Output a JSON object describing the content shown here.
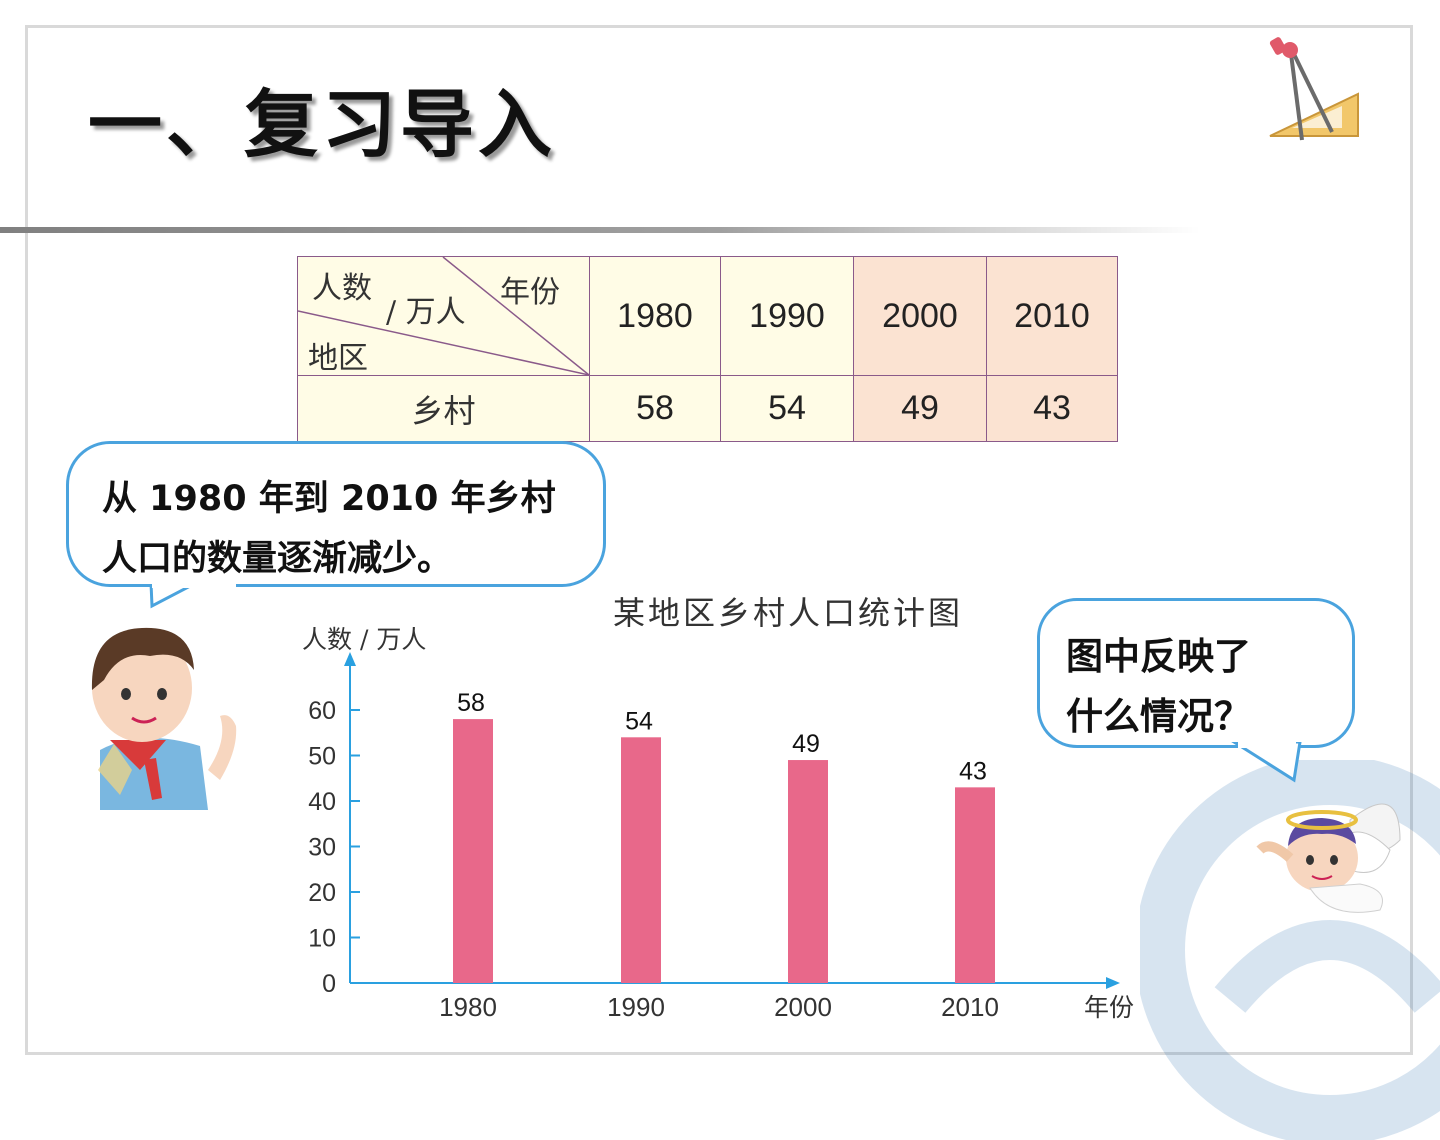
{
  "title": "一、复习导入",
  "table": {
    "corner_top_left": "人数",
    "corner_unit": "/ 万人",
    "corner_top_right": "年份",
    "corner_bottom": "地区",
    "years": [
      "1980",
      "1990",
      "2000",
      "2010"
    ],
    "row_label": "乡村",
    "row_values": [
      "58",
      "54",
      "49",
      "43"
    ]
  },
  "bubble_left": {
    "line1": "从 1980 年到 2010 年乡村",
    "line2": "人口的数量逐渐减少。"
  },
  "bubble_right": {
    "line1": "图中反映了",
    "line2": "什么情况？"
  },
  "chart_data": {
    "type": "bar",
    "title": "某地区乡村人口统计图",
    "ylabel": "人数 / 万人",
    "xlabel": "年份",
    "categories": [
      "1980",
      "1990",
      "2000",
      "2010"
    ],
    "values": [
      58,
      54,
      49,
      43
    ],
    "ylim": [
      0,
      60
    ],
    "yticks": [
      0,
      10,
      20,
      30,
      40,
      50,
      60
    ],
    "bar_color": "#e8688a",
    "axis_color": "#2aa0e0",
    "grid": false
  },
  "colors": {
    "table_border": "#8a5a8a",
    "cream": "#fffce6",
    "peach": "#fbe3d2",
    "bubble_border": "#4aa3de"
  }
}
